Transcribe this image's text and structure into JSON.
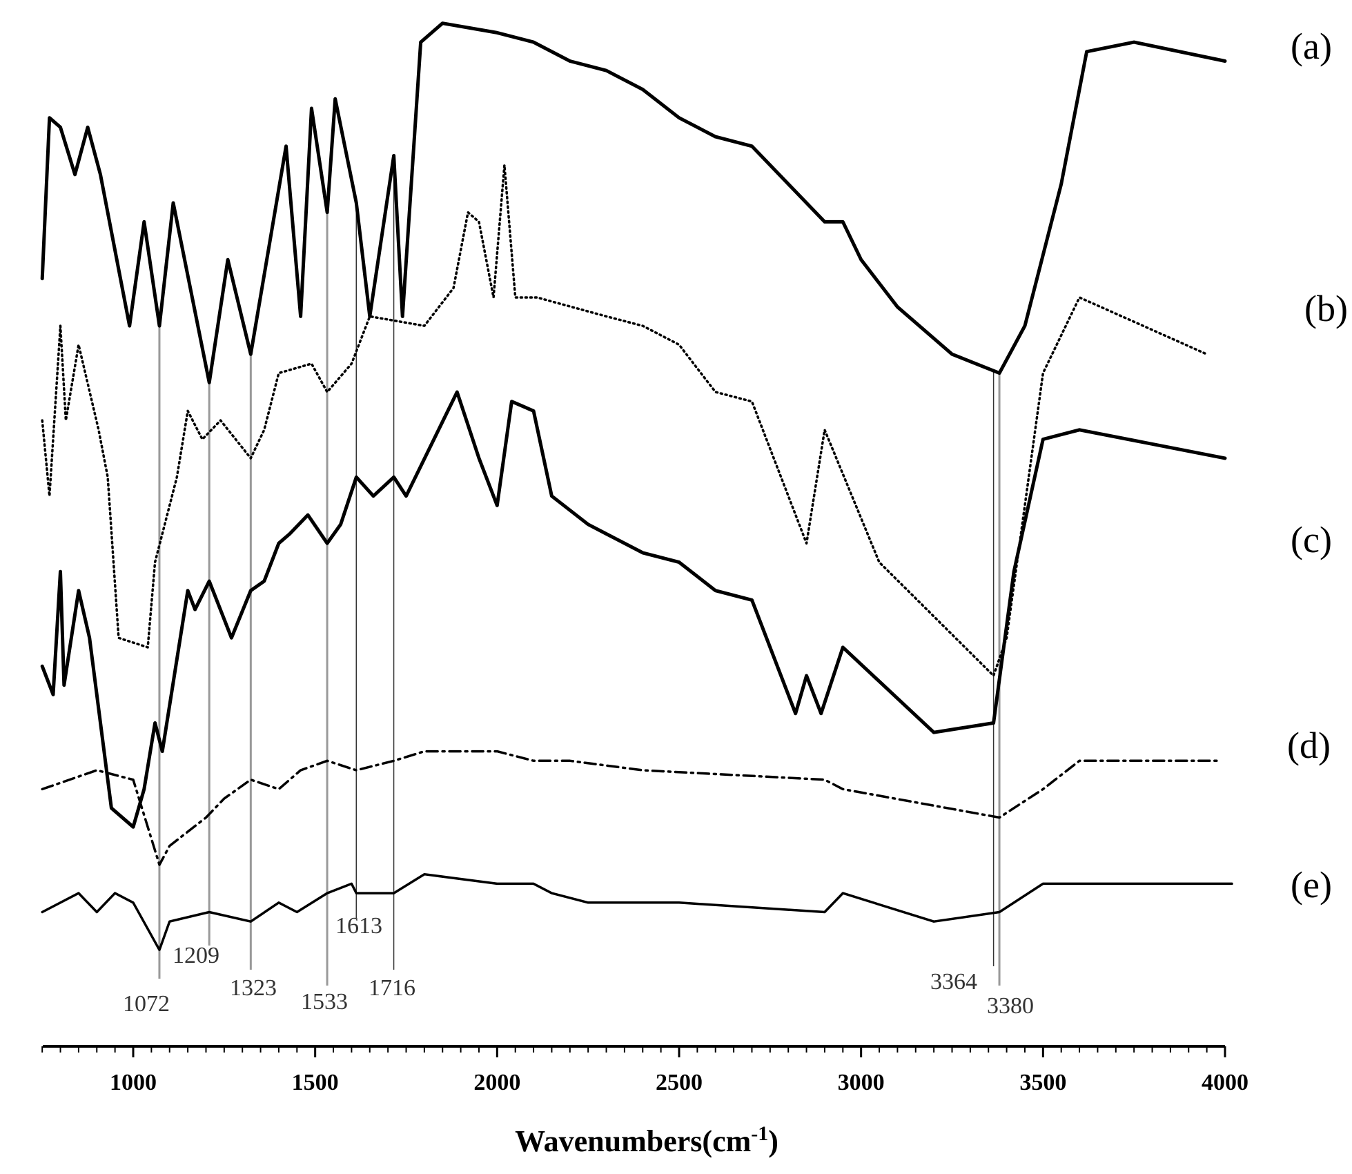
{
  "chart_data": {
    "type": "line",
    "title": "",
    "xlabel": "Wavenumbers(cm",
    "xlabel_superscript": "-1",
    "xlabel_suffix": ")",
    "ylabel": "",
    "xlim": [
      750,
      4000
    ],
    "xticks": [
      1000,
      1500,
      2000,
      2500,
      3000,
      3500,
      4000
    ],
    "grid": false,
    "legend": "none",
    "series": [
      {
        "name": "(a)",
        "style": "solid-thick",
        "y": [
          0.28,
          0.11,
          0.12,
          0.17,
          0.12,
          0.17,
          0.33,
          0.22,
          0.33,
          0.2,
          0.39,
          0.26,
          0.36,
          0.14,
          0.32,
          0.1,
          0.21,
          0.09,
          0.2,
          0.32,
          0.15,
          0.32,
          0.03,
          0.01,
          0.02,
          0.03,
          0.05,
          0.06,
          0.08,
          0.11,
          0.13,
          0.14,
          0.18,
          0.22,
          0.22,
          0.26,
          0.31,
          0.36,
          0.38,
          0.33,
          0.18,
          0.04,
          0.03,
          0.05
        ],
        "x": [
          750,
          770,
          800,
          840,
          875,
          910,
          990,
          1030,
          1072,
          1110,
          1209,
          1260,
          1323,
          1420,
          1460,
          1490,
          1533,
          1555,
          1613,
          1650,
          1716,
          1740,
          1790,
          1850,
          2000,
          2100,
          2200,
          2300,
          2400,
          2500,
          2600,
          2700,
          2800,
          2900,
          2950,
          3000,
          3100,
          3250,
          3380,
          3450,
          3550,
          3620,
          3750,
          4000
        ]
      },
      {
        "name": "(b)",
        "style": "dotted",
        "y": [
          0.43,
          0.51,
          0.33,
          0.43,
          0.35,
          0.44,
          0.49,
          0.66,
          0.67,
          0.58,
          0.49,
          0.42,
          0.45,
          0.43,
          0.47,
          0.44,
          0.38,
          0.37,
          0.4,
          0.37,
          0.32,
          0.33,
          0.29,
          0.21,
          0.22,
          0.3,
          0.16,
          0.3,
          0.3,
          0.32,
          0.33,
          0.35,
          0.4,
          0.41,
          0.56,
          0.44,
          0.58,
          0.7,
          0.66,
          0.38,
          0.3,
          0.36
        ],
        "x": [
          750,
          770,
          800,
          815,
          850,
          905,
          930,
          960,
          1040,
          1060,
          1120,
          1150,
          1190,
          1240,
          1323,
          1360,
          1400,
          1490,
          1533,
          1600,
          1650,
          1800,
          1880,
          1920,
          1950,
          1990,
          2020,
          2050,
          2110,
          2300,
          2400,
          2500,
          2600,
          2700,
          2850,
          2900,
          3050,
          3364,
          3400,
          3500,
          3600,
          3950
        ]
      },
      {
        "name": "(c)",
        "style": "solid-thick",
        "y": [
          0.69,
          0.72,
          0.59,
          0.71,
          0.61,
          0.66,
          0.84,
          0.86,
          0.82,
          0.75,
          0.78,
          0.61,
          0.63,
          0.6,
          0.66,
          0.61,
          0.6,
          0.56,
          0.55,
          0.53,
          0.56,
          0.54,
          0.49,
          0.51,
          0.49,
          0.51,
          0.4,
          0.47,
          0.52,
          0.41,
          0.42,
          0.51,
          0.54,
          0.55,
          0.57,
          0.58,
          0.61,
          0.62,
          0.74,
          0.7,
          0.74,
          0.67,
          0.76,
          0.75,
          0.59,
          0.45,
          0.44,
          0.47
        ],
        "x": [
          750,
          780,
          800,
          810,
          850,
          880,
          940,
          1000,
          1030,
          1060,
          1080,
          1150,
          1170,
          1209,
          1270,
          1323,
          1360,
          1400,
          1430,
          1480,
          1533,
          1570,
          1613,
          1660,
          1716,
          1750,
          1890,
          1950,
          2000,
          2040,
          2100,
          2150,
          2250,
          2300,
          2400,
          2500,
          2600,
          2700,
          2820,
          2850,
          2890,
          2950,
          3200,
          3364,
          3420,
          3500,
          3600,
          4000
        ]
      },
      {
        "name": "(d)",
        "style": "dash-dot",
        "y": [
          0.82,
          0.8,
          0.81,
          0.9,
          0.88,
          0.85,
          0.83,
          0.81,
          0.82,
          0.8,
          0.79,
          0.8,
          0.79,
          0.78,
          0.78,
          0.79,
          0.79,
          0.8,
          0.81,
          0.82,
          0.85,
          0.82,
          0.79,
          0.79
        ],
        "x": [
          750,
          900,
          1000,
          1072,
          1100,
          1200,
          1250,
          1323,
          1400,
          1460,
          1533,
          1613,
          1716,
          1800,
          2000,
          2100,
          2200,
          2400,
          2900,
          2950,
          3380,
          3500,
          3600,
          4000
        ]
      },
      {
        "name": "(e)",
        "style": "solid",
        "y": [
          0.95,
          0.93,
          0.95,
          0.93,
          0.94,
          0.99,
          0.96,
          0.95,
          0.96,
          0.94,
          0.95,
          0.93,
          0.92,
          0.93,
          0.93,
          0.91,
          0.92,
          0.92,
          0.93,
          0.94,
          0.94,
          0.95,
          0.93,
          0.96,
          0.95,
          0.92,
          0.92,
          0.92
        ],
        "x": [
          750,
          850,
          900,
          950,
          1000,
          1072,
          1100,
          1209,
          1323,
          1400,
          1450,
          1533,
          1600,
          1613,
          1716,
          1800,
          2000,
          2100,
          2150,
          2250,
          2500,
          2900,
          2950,
          3200,
          3380,
          3500,
          3600,
          4000
        ]
      }
    ],
    "series_labels": [
      "(a)",
      "(b)",
      "(c)",
      "(d)",
      "(e)"
    ],
    "annotations": [
      {
        "text": "1072",
        "x": 1072
      },
      {
        "text": "1209",
        "x": 1209
      },
      {
        "text": "1323",
        "x": 1323
      },
      {
        "text": "1533",
        "x": 1533
      },
      {
        "text": "1613",
        "x": 1613
      },
      {
        "text": "1716",
        "x": 1716
      },
      {
        "text": "3364",
        "x": 3364
      },
      {
        "text": "3380",
        "x": 3380
      }
    ]
  },
  "colors": {
    "line": "#000000",
    "guide": "#999999",
    "background": "#ffffff"
  }
}
